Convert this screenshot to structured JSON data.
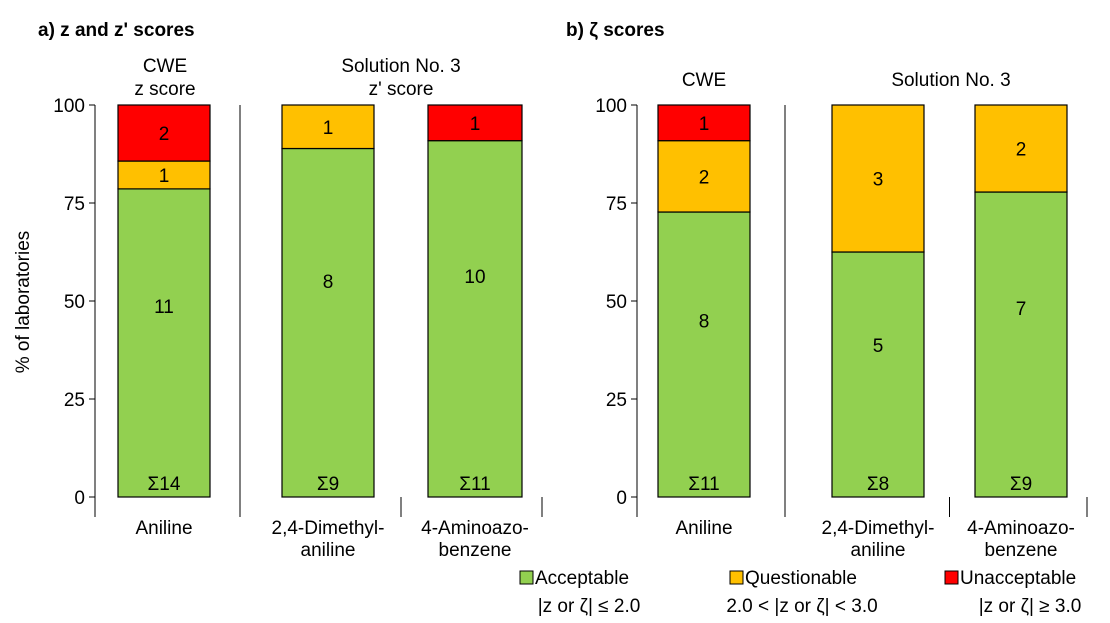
{
  "colors": {
    "acceptable": "#92d050",
    "questionable": "#ffc000",
    "unacceptable": "#ff0000"
  },
  "ylabel": "% of laboratories",
  "legend": [
    {
      "key": "acceptable",
      "name": "Acceptable",
      "criterion": "|z or ζ| ≤ 2.0"
    },
    {
      "key": "questionable",
      "name": "Questionable",
      "criterion": "2.0 < |z or ζ| < 3.0"
    },
    {
      "key": "unacceptable",
      "name": "Unacceptable",
      "criterion": "|z or ζ| ≥ 3.0"
    }
  ],
  "chart_data": [
    {
      "type": "bar",
      "stacked": true,
      "title": "a) z and z' scores",
      "ylabel": "% of laboratories",
      "ylim": [
        0,
        100
      ],
      "yticks": [
        "0",
        "25",
        "50",
        "75",
        "100"
      ],
      "groups": [
        {
          "label_lines": [
            "CWE",
            "z score"
          ],
          "categories": [
            {
              "lines": [
                "Aniline"
              ]
            }
          ]
        },
        {
          "label_lines": [
            "Solution No. 3",
            "z' score"
          ],
          "categories": [
            {
              "lines": [
                "2,4-Dimethyl-",
                "aniline"
              ]
            },
            {
              "lines": [
                "4-Aminoazo-",
                "benzene"
              ]
            }
          ]
        }
      ],
      "categories": [
        "Aniline",
        "2,4-Dimethylaniline",
        "4-Aminoazobenzene"
      ],
      "series": [
        {
          "name": "Acceptable",
          "counts": [
            11,
            8,
            10
          ],
          "values": [
            78.6,
            88.9,
            90.9
          ]
        },
        {
          "name": "Questionable",
          "counts": [
            1,
            1,
            0
          ],
          "values": [
            7.1,
            11.1,
            0
          ]
        },
        {
          "name": "Unacceptable",
          "counts": [
            2,
            0,
            1
          ],
          "values": [
            14.3,
            0,
            9.1
          ]
        }
      ],
      "totals": [
        "Σ14",
        "Σ9",
        "Σ11"
      ]
    },
    {
      "type": "bar",
      "stacked": true,
      "title": "b) ζ scores",
      "ylim": [
        0,
        100
      ],
      "yticks": [
        "0",
        "25",
        "50",
        "75",
        "100"
      ],
      "groups": [
        {
          "label_lines": [
            "CWE"
          ],
          "categories": [
            {
              "lines": [
                "Aniline"
              ]
            }
          ]
        },
        {
          "label_lines": [
            "Solution No. 3"
          ],
          "categories": [
            {
              "lines": [
                "2,4-Dimethyl-",
                "aniline"
              ]
            },
            {
              "lines": [
                "4-Aminoazo-",
                "benzene"
              ]
            }
          ]
        }
      ],
      "categories": [
        "Aniline",
        "2,4-Dimethylaniline",
        "4-Aminoazobenzene"
      ],
      "series": [
        {
          "name": "Acceptable",
          "counts": [
            8,
            5,
            7
          ],
          "values": [
            72.7,
            62.5,
            77.8
          ]
        },
        {
          "name": "Questionable",
          "counts": [
            2,
            3,
            2
          ],
          "values": [
            18.2,
            37.5,
            22.2
          ]
        },
        {
          "name": "Unacceptable",
          "counts": [
            1,
            0,
            0
          ],
          "values": [
            9.1,
            0,
            0
          ]
        }
      ],
      "totals": [
        "Σ11",
        "Σ8",
        "Σ9"
      ]
    }
  ]
}
